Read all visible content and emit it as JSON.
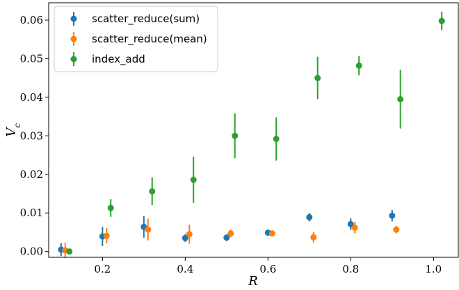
{
  "chart_data": {
    "type": "scatter",
    "title": "",
    "xlabel": "R",
    "ylabel": "V_c",
    "xlabel_display": "R",
    "ylabel_main": "V",
    "ylabel_sub": "c",
    "xlim": [
      0.07,
      1.06
    ],
    "ylim": [
      -0.0015,
      0.0645
    ],
    "xticks": [
      0.2,
      0.4,
      0.6,
      0.8,
      1.0
    ],
    "xtick_labels": [
      "0.2",
      "0.4",
      "0.6",
      "0.8",
      "1.0"
    ],
    "yticks": [
      0.0,
      0.01,
      0.02,
      0.03,
      0.04,
      0.05,
      0.06
    ],
    "ytick_labels": [
      "0.00",
      "0.01",
      "0.02",
      "0.03",
      "0.04",
      "0.05",
      "0.06"
    ],
    "grid": false,
    "legend_position": "top-left",
    "series": [
      {
        "name": "scatter_reduce(sum)",
        "color": "#1f77b4",
        "x": [
          0.1,
          0.2,
          0.3,
          0.4,
          0.5,
          0.6,
          0.7,
          0.8,
          0.9
        ],
        "y": [
          0.0005,
          0.0039,
          0.0064,
          0.0035,
          0.0036,
          0.0049,
          0.0089,
          0.0071,
          0.0093
        ],
        "err": [
          0.0017,
          0.0025,
          0.0028,
          0.001,
          0.0009,
          0.0007,
          0.0011,
          0.0015,
          0.0015
        ]
      },
      {
        "name": "scatter_reduce(mean)",
        "color": "#ff7f0e",
        "x": [
          0.11,
          0.21,
          0.31,
          0.41,
          0.51,
          0.61,
          0.71,
          0.81,
          0.91
        ],
        "y": [
          0.0003,
          0.0041,
          0.0057,
          0.0045,
          0.0047,
          0.0047,
          0.0037,
          0.0062,
          0.0057
        ],
        "err": [
          0.002,
          0.002,
          0.0028,
          0.0025,
          0.001,
          0.0007,
          0.0014,
          0.0015,
          0.001
        ]
      },
      {
        "name": "index_add",
        "color": "#2ca02c",
        "x": [
          0.12,
          0.22,
          0.32,
          0.42,
          0.52,
          0.62,
          0.72,
          0.82,
          0.92,
          1.02
        ],
        "y": [
          0.0,
          0.0113,
          0.0156,
          0.0186,
          0.03,
          0.0292,
          0.045,
          0.0482,
          0.0395,
          0.0598
        ],
        "err": [
          0.0002,
          0.0023,
          0.0036,
          0.006,
          0.0058,
          0.0056,
          0.0055,
          0.0025,
          0.0076,
          0.0024
        ]
      }
    ]
  }
}
